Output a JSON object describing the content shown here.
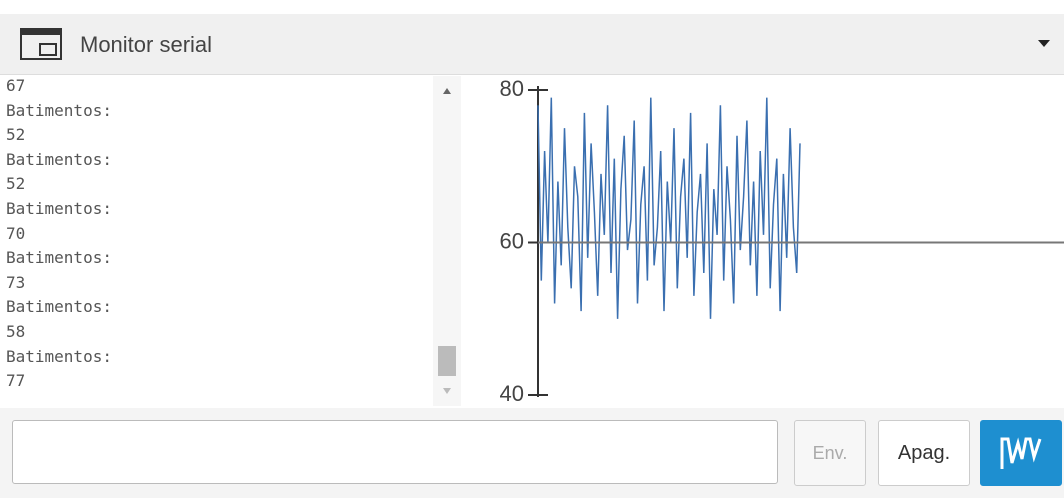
{
  "header": {
    "title": "Monitor serial"
  },
  "serial_lines": [
    "67",
    "Batimentos:",
    "52",
    "Batimentos:",
    "52",
    "Batimentos:",
    "70",
    "Batimentos:",
    "73",
    "Batimentos:",
    "58",
    "Batimentos:",
    "77"
  ],
  "chart_data": {
    "type": "line",
    "color": "#3a6fb0",
    "ylim": [
      40,
      80
    ],
    "yticks": [
      40,
      60,
      80
    ],
    "hline": 60,
    "values": [
      78,
      55,
      72,
      60,
      79,
      52,
      68,
      57,
      75,
      62,
      54,
      70,
      66,
      51,
      77,
      58,
      73,
      64,
      53,
      69,
      61,
      78,
      56,
      71,
      50,
      67,
      74,
      59,
      63,
      76,
      52,
      65,
      70,
      55,
      79,
      57,
      62,
      72,
      51,
      68,
      60,
      75,
      54,
      66,
      71,
      58,
      77,
      53,
      64,
      69,
      56,
      73,
      50,
      67,
      61,
      78,
      55,
      70,
      63,
      52,
      74,
      59,
      66,
      76,
      57,
      68,
      53,
      72,
      61,
      79,
      54,
      65,
      71,
      51,
      69,
      58,
      75,
      62,
      56,
      73
    ]
  },
  "buttons": {
    "send": "Env.",
    "clear": "Apag."
  }
}
